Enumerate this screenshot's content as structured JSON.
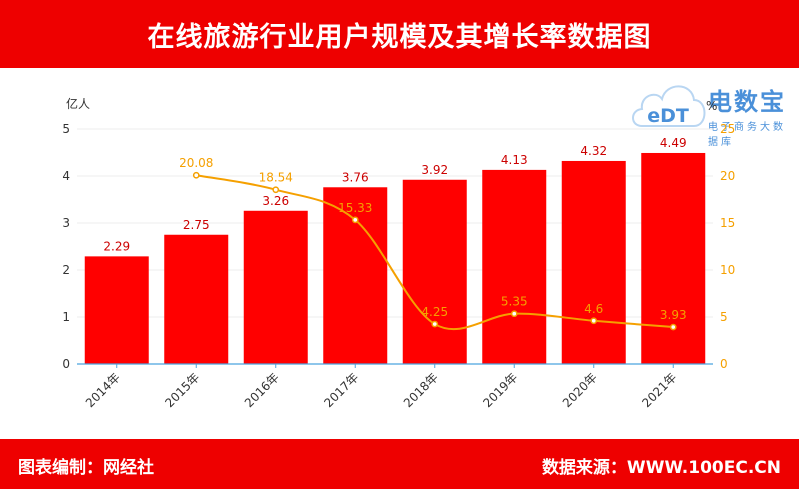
{
  "header": {
    "title": "在线旅游行业用户规模及其增长率数据图"
  },
  "footer": {
    "left": "图表编制：网经社",
    "right": "数据来源：WWW.100EC.CN"
  },
  "logo": {
    "name": "电数宝",
    "tagline": "电子商务大数据库",
    "mark": "eDT"
  },
  "colors": {
    "bar": "#ff0000",
    "line": "#f5a000",
    "header": "#ee0000",
    "axis": "#4aa3df",
    "logo": "#4a90d9"
  },
  "chart_data": {
    "type": "bar",
    "categories": [
      "2014年",
      "2015年",
      "2016年",
      "2017年",
      "2018年",
      "2019年",
      "2020年",
      "2021年"
    ],
    "series": [
      {
        "type": "bar",
        "axis": "left",
        "values": [
          2.29,
          2.75,
          3.26,
          3.76,
          3.92,
          4.13,
          4.32,
          4.49
        ]
      },
      {
        "type": "line",
        "axis": "right",
        "values": [
          null,
          20.08,
          18.54,
          15.33,
          4.25,
          5.35,
          4.6,
          3.93
        ]
      }
    ],
    "ylabel": "亿人",
    "y2label": "%",
    "ylim": [
      0,
      5
    ],
    "y2lim": [
      0,
      25
    ],
    "yticks": [
      0,
      1,
      2,
      3,
      4,
      5
    ],
    "y2ticks": [
      0,
      5,
      10,
      15,
      20,
      25
    ],
    "grid": true
  }
}
